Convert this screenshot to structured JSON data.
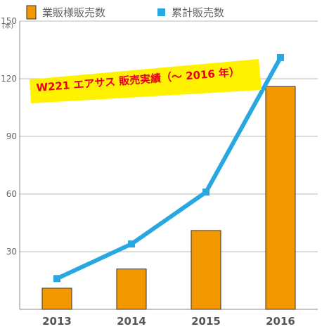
{
  "chart_data": {
    "type": "bar+line",
    "categories": [
      "2013",
      "2014",
      "2015",
      "2016"
    ],
    "series": [
      {
        "name": "業販様販売数",
        "type": "bar",
        "values": [
          11,
          21,
          41,
          116
        ],
        "color": "#f39800"
      },
      {
        "name": "累計販売数",
        "type": "line",
        "values": [
          16,
          34,
          61,
          131
        ],
        "color": "#29a8e0"
      }
    ],
    "title": "W221 エアサス 販売実績（～ 2016 年）",
    "ylabel": "(本)",
    "ylim": [
      0,
      150
    ],
    "yticks": [
      "150",
      "120",
      "90",
      "60",
      "30"
    ],
    "grid": true,
    "legend_position": "top",
    "banner_color": "#fff200"
  }
}
